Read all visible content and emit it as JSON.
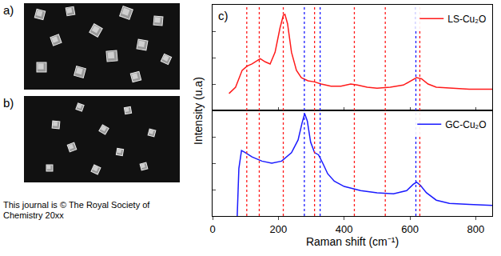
{
  "panels": [
    {
      "label": "a)"
    },
    {
      "label": "b)"
    }
  ],
  "chart_label": "c)",
  "footer": "This journal is © The Royal Society of Chemistry 20xx",
  "chart_data": [
    {
      "type": "line",
      "ylabel": "Intensity (u.a)",
      "x": [
        50,
        70,
        90,
        105,
        120,
        135,
        145,
        160,
        175,
        190,
        205,
        215,
        220,
        228,
        240,
        255,
        270,
        290,
        310,
        330,
        360,
        390,
        420,
        440,
        470,
        500,
        540,
        580,
        605,
        620,
        635,
        655,
        680,
        720,
        780,
        850
      ],
      "series": [
        {
          "name": "LS-Cu₂O",
          "color": "#ff1a1a",
          "values": [
            0.16,
            0.22,
            0.38,
            0.42,
            0.44,
            0.47,
            0.49,
            0.46,
            0.44,
            0.55,
            0.78,
            0.9,
            0.91,
            0.82,
            0.55,
            0.38,
            0.31,
            0.28,
            0.27,
            0.25,
            0.23,
            0.23,
            0.25,
            0.24,
            0.22,
            0.21,
            0.22,
            0.24,
            0.28,
            0.31,
            0.3,
            0.25,
            0.22,
            0.21,
            0.2,
            0.2
          ]
        }
      ],
      "xlim": [
        0,
        850
      ],
      "xticks": [
        0,
        200,
        400,
        600,
        800
      ],
      "ylim": [
        0,
        1
      ],
      "yticks": [
        0.25,
        0.5,
        0.75
      ],
      "tick_labels": false,
      "grid": false,
      "legend": "top right",
      "reference_lines": [
        {
          "color": "#ff1a1a",
          "x": [
            104,
            142,
            215,
            310,
            431,
            525,
            630
          ]
        },
        {
          "color": "#1a1aff",
          "x": [
            279,
            327,
            618
          ]
        }
      ]
    },
    {
      "type": "line",
      "xlabel": "Raman shift (cm⁻¹)",
      "x": [
        75,
        80,
        88,
        100,
        120,
        150,
        180,
        210,
        240,
        260,
        272,
        280,
        288,
        298,
        310,
        322,
        335,
        350,
        370,
        400,
        450,
        500,
        550,
        590,
        610,
        620,
        632,
        650,
        680,
        720,
        780,
        850
      ],
      "series": [
        {
          "name": "GC-Cu₂O",
          "color": "#1a1aff",
          "values": [
            0,
            0.45,
            0.62,
            0.6,
            0.56,
            0.52,
            0.5,
            0.52,
            0.6,
            0.72,
            0.88,
            0.97,
            0.9,
            0.7,
            0.6,
            0.58,
            0.5,
            0.4,
            0.33,
            0.28,
            0.24,
            0.22,
            0.21,
            0.24,
            0.3,
            0.32,
            0.29,
            0.22,
            0.15,
            0.12,
            0.11,
            0.1
          ]
        }
      ],
      "xlim": [
        0,
        850
      ],
      "xticks": [
        0,
        200,
        400,
        600,
        800
      ],
      "ylim": [
        0,
        1
      ],
      "yticks": [
        0.25,
        0.5,
        0.75
      ],
      "tick_labels": "x",
      "grid": false,
      "legend": "top right"
    }
  ]
}
